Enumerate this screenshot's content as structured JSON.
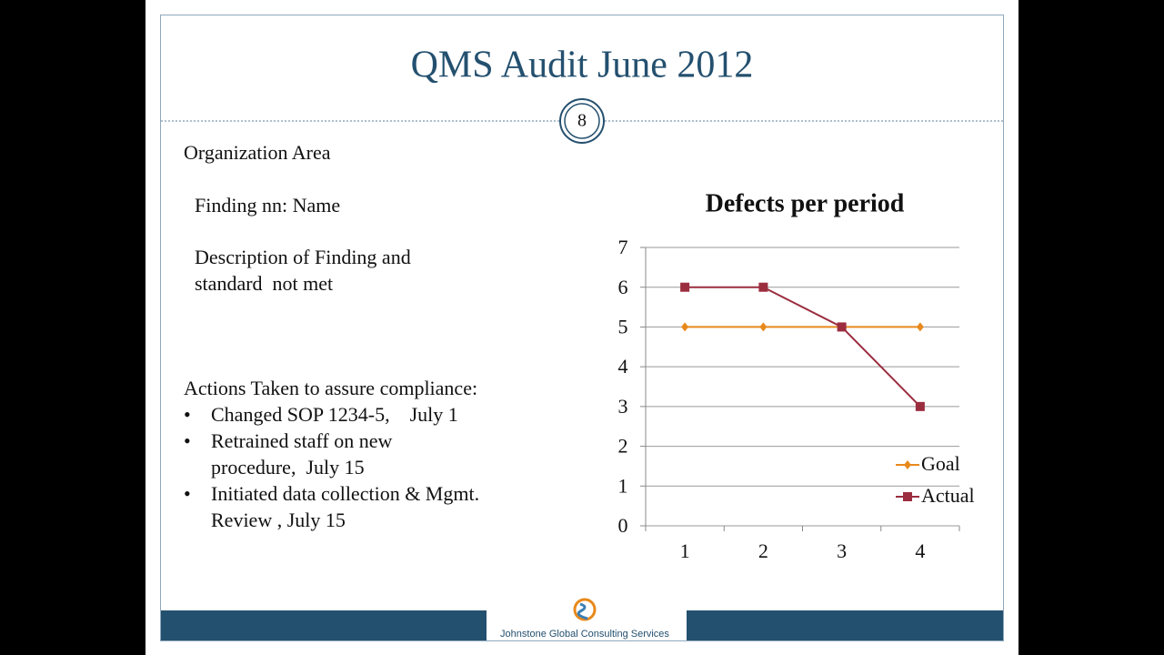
{
  "header": {
    "title": "QMS Audit June 2012",
    "slide_number": "8"
  },
  "body": {
    "area": "Organization Area",
    "finding": "Finding nn: Name",
    "description": [
      "Description of Finding and",
      "standard  not met"
    ],
    "actions_heading": "Actions Taken to assure compliance:",
    "actions": [
      [
        "Changed SOP 1234-5,    July 1"
      ],
      [
        "Retrained staff on new",
        "procedure,  July 15"
      ],
      [
        "Initiated data collection & Mgmt.",
        "Review , July 15"
      ]
    ]
  },
  "footer": {
    "company": "Johnstone Global Consulting Services"
  },
  "chart_data": {
    "type": "line",
    "title": "Defects per period",
    "categories": [
      "1",
      "2",
      "3",
      "4"
    ],
    "series": [
      {
        "name": "Goal",
        "color": "#e8891c",
        "marker": "diamond",
        "values": [
          5,
          5,
          5,
          5
        ]
      },
      {
        "name": "Actual",
        "color": "#9b2d3f",
        "marker": "square",
        "values": [
          6,
          6,
          5,
          3
        ]
      }
    ],
    "ylim": [
      0,
      7
    ],
    "yticks": [
      0,
      1,
      2,
      3,
      4,
      5,
      6,
      7
    ],
    "grid": true,
    "legend": "right"
  }
}
